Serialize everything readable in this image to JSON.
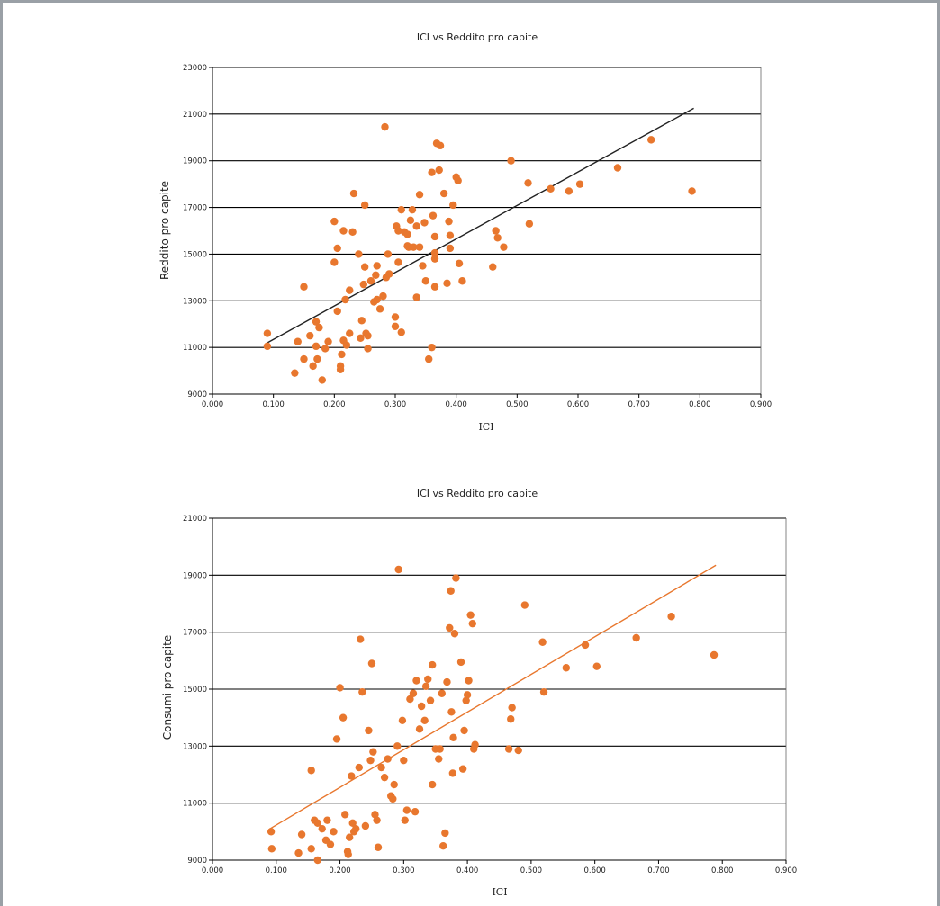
{
  "chart_data": [
    {
      "type": "scatter",
      "title": "ICI vs Reddito pro capite",
      "xlabel": "ICI",
      "ylabel": "Reddito pro capite",
      "xlim": [
        0,
        0.9
      ],
      "ylim": [
        9000,
        23000
      ],
      "x_tick_labels": [
        "0.000",
        "0.100",
        "0.200",
        "0.300",
        "0.400",
        "0.500",
        "0.600",
        "0.700",
        "0.800",
        "0.900"
      ],
      "y_tick_labels": [
        "9000",
        "11000",
        "13000",
        "15000",
        "17000",
        "19000",
        "21000",
        "23000"
      ],
      "grid": "horizontal",
      "point_color": "#e8772e",
      "trendline_color": "#222222",
      "trendline": {
        "x": [
          0.09,
          0.79
        ],
        "y": [
          11200,
          21250
        ]
      },
      "points": [
        [
          0.09,
          11600
        ],
        [
          0.09,
          11050
        ],
        [
          0.135,
          9900
        ],
        [
          0.14,
          11250
        ],
        [
          0.15,
          10500
        ],
        [
          0.15,
          13600
        ],
        [
          0.16,
          11500
        ],
        [
          0.165,
          10200
        ],
        [
          0.17,
          12100
        ],
        [
          0.17,
          11050
        ],
        [
          0.172,
          10500
        ],
        [
          0.175,
          11850
        ],
        [
          0.18,
          9600
        ],
        [
          0.185,
          10950
        ],
        [
          0.19,
          11250
        ],
        [
          0.2,
          14650
        ],
        [
          0.2,
          16400
        ],
        [
          0.205,
          15250
        ],
        [
          0.205,
          12550
        ],
        [
          0.21,
          10050
        ],
        [
          0.21,
          10200
        ],
        [
          0.212,
          10700
        ],
        [
          0.215,
          11300
        ],
        [
          0.215,
          16000
        ],
        [
          0.218,
          13050
        ],
        [
          0.22,
          11100
        ],
        [
          0.225,
          11600
        ],
        [
          0.225,
          13450
        ],
        [
          0.23,
          15950
        ],
        [
          0.232,
          17600
        ],
        [
          0.24,
          15000
        ],
        [
          0.243,
          11400
        ],
        [
          0.245,
          12150
        ],
        [
          0.248,
          13700
        ],
        [
          0.25,
          17100
        ],
        [
          0.25,
          14450
        ],
        [
          0.252,
          11600
        ],
        [
          0.255,
          11500
        ],
        [
          0.255,
          10950
        ],
        [
          0.26,
          13850
        ],
        [
          0.265,
          12950
        ],
        [
          0.268,
          14100
        ],
        [
          0.27,
          14500
        ],
        [
          0.27,
          13050
        ],
        [
          0.275,
          12650
        ],
        [
          0.28,
          13200
        ],
        [
          0.283,
          20450
        ],
        [
          0.285,
          14000
        ],
        [
          0.288,
          15000
        ],
        [
          0.29,
          14150
        ],
        [
          0.3,
          12300
        ],
        [
          0.3,
          11900
        ],
        [
          0.302,
          16200
        ],
        [
          0.305,
          16000
        ],
        [
          0.305,
          14650
        ],
        [
          0.31,
          11650
        ],
        [
          0.31,
          16900
        ],
        [
          0.315,
          15950
        ],
        [
          0.32,
          15850
        ],
        [
          0.32,
          15350
        ],
        [
          0.322,
          15300
        ],
        [
          0.325,
          16450
        ],
        [
          0.328,
          16900
        ],
        [
          0.33,
          15300
        ],
        [
          0.335,
          13150
        ],
        [
          0.335,
          16200
        ],
        [
          0.34,
          15300
        ],
        [
          0.34,
          17550
        ],
        [
          0.345,
          14500
        ],
        [
          0.348,
          16350
        ],
        [
          0.35,
          13850
        ],
        [
          0.355,
          10500
        ],
        [
          0.36,
          11000
        ],
        [
          0.36,
          18500
        ],
        [
          0.362,
          16650
        ],
        [
          0.365,
          15750
        ],
        [
          0.365,
          15050
        ],
        [
          0.365,
          14800
        ],
        [
          0.365,
          13600
        ],
        [
          0.368,
          19750
        ],
        [
          0.372,
          18600
        ],
        [
          0.374,
          19650
        ],
        [
          0.38,
          17600
        ],
        [
          0.385,
          13750
        ],
        [
          0.388,
          16400
        ],
        [
          0.39,
          15250
        ],
        [
          0.39,
          15800
        ],
        [
          0.395,
          17100
        ],
        [
          0.4,
          18300
        ],
        [
          0.403,
          18150
        ],
        [
          0.405,
          14600
        ],
        [
          0.41,
          13850
        ],
        [
          0.46,
          14450
        ],
        [
          0.465,
          16000
        ],
        [
          0.468,
          15700
        ],
        [
          0.478,
          15300
        ],
        [
          0.49,
          19000
        ],
        [
          0.518,
          18050
        ],
        [
          0.52,
          16300
        ],
        [
          0.555,
          17800
        ],
        [
          0.585,
          17700
        ],
        [
          0.603,
          18000
        ],
        [
          0.665,
          18700
        ],
        [
          0.72,
          19900
        ],
        [
          0.787,
          17700
        ]
      ]
    },
    {
      "type": "scatter",
      "title": "ICI vs Reddito pro capite",
      "xlabel": "ICI",
      "ylabel": "Consumi pro capite",
      "xlim": [
        0,
        0.9
      ],
      "ylim": [
        9000,
        21000
      ],
      "x_tick_labels": [
        "0.000",
        "0.100",
        "0.200",
        "0.300",
        "0.400",
        "0.500",
        "0.600",
        "0.700",
        "0.800",
        "0.900"
      ],
      "y_tick_labels": [
        "9000",
        "11000",
        "13000",
        "15000",
        "17000",
        "19000",
        "21000"
      ],
      "grid": "horizontal",
      "point_color": "#e8772e",
      "trendline_color": "#e8772e",
      "trendline": {
        "x": [
          0.09,
          0.79
        ],
        "y": [
          10100,
          19350
        ]
      },
      "points": [
        [
          0.092,
          10000
        ],
        [
          0.093,
          9400
        ],
        [
          0.135,
          9250
        ],
        [
          0.14,
          9900
        ],
        [
          0.155,
          9400
        ],
        [
          0.155,
          12150
        ],
        [
          0.16,
          10400
        ],
        [
          0.165,
          9000
        ],
        [
          0.165,
          10300
        ],
        [
          0.172,
          10100
        ],
        [
          0.178,
          9700
        ],
        [
          0.18,
          10400
        ],
        [
          0.185,
          9550
        ],
        [
          0.19,
          10000
        ],
        [
          0.195,
          13250
        ],
        [
          0.2,
          15050
        ],
        [
          0.205,
          14000
        ],
        [
          0.208,
          10600
        ],
        [
          0.212,
          9300
        ],
        [
          0.213,
          9200
        ],
        [
          0.215,
          9800
        ],
        [
          0.218,
          11950
        ],
        [
          0.22,
          10300
        ],
        [
          0.222,
          10000
        ],
        [
          0.225,
          10100
        ],
        [
          0.23,
          12250
        ],
        [
          0.232,
          16750
        ],
        [
          0.235,
          14900
        ],
        [
          0.24,
          10200
        ],
        [
          0.245,
          13550
        ],
        [
          0.248,
          12500
        ],
        [
          0.25,
          15900
        ],
        [
          0.252,
          12800
        ],
        [
          0.255,
          10600
        ],
        [
          0.258,
          10400
        ],
        [
          0.26,
          9450
        ],
        [
          0.265,
          12250
        ],
        [
          0.27,
          11900
        ],
        [
          0.275,
          12550
        ],
        [
          0.28,
          11250
        ],
        [
          0.283,
          11150
        ],
        [
          0.285,
          11650
        ],
        [
          0.29,
          13000
        ],
        [
          0.292,
          19200
        ],
        [
          0.298,
          13900
        ],
        [
          0.3,
          12500
        ],
        [
          0.302,
          10400
        ],
        [
          0.305,
          10750
        ],
        [
          0.31,
          14650
        ],
        [
          0.315,
          14850
        ],
        [
          0.318,
          10700
        ],
        [
          0.32,
          15300
        ],
        [
          0.325,
          13600
        ],
        [
          0.328,
          14400
        ],
        [
          0.333,
          13900
        ],
        [
          0.335,
          15100
        ],
        [
          0.338,
          15350
        ],
        [
          0.342,
          14600
        ],
        [
          0.345,
          11650
        ],
        [
          0.345,
          15850
        ],
        [
          0.35,
          12900
        ],
        [
          0.355,
          12550
        ],
        [
          0.357,
          12900
        ],
        [
          0.36,
          14850
        ],
        [
          0.362,
          9500
        ],
        [
          0.365,
          9950
        ],
        [
          0.368,
          15250
        ],
        [
          0.372,
          17150
        ],
        [
          0.374,
          18450
        ],
        [
          0.375,
          14200
        ],
        [
          0.377,
          12050
        ],
        [
          0.378,
          13300
        ],
        [
          0.38,
          16950
        ],
        [
          0.382,
          18900
        ],
        [
          0.39,
          15950
        ],
        [
          0.393,
          12200
        ],
        [
          0.395,
          13550
        ],
        [
          0.398,
          14600
        ],
        [
          0.4,
          14800
        ],
        [
          0.402,
          15300
        ],
        [
          0.405,
          17600
        ],
        [
          0.408,
          17300
        ],
        [
          0.41,
          12900
        ],
        [
          0.412,
          13050
        ],
        [
          0.465,
          12900
        ],
        [
          0.468,
          13950
        ],
        [
          0.47,
          14350
        ],
        [
          0.48,
          12850
        ],
        [
          0.49,
          17950
        ],
        [
          0.518,
          16650
        ],
        [
          0.52,
          14900
        ],
        [
          0.555,
          15750
        ],
        [
          0.585,
          16550
        ],
        [
          0.603,
          15800
        ],
        [
          0.665,
          16800
        ],
        [
          0.72,
          17550
        ],
        [
          0.787,
          16200
        ]
      ]
    }
  ]
}
